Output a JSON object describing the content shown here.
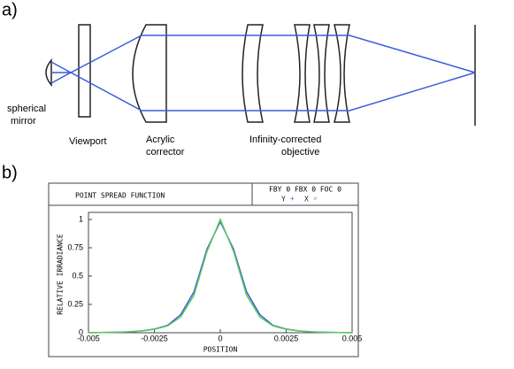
{
  "figure_labels": [
    "a)",
    "b)"
  ],
  "diagram": {
    "labels": {
      "mirror": [
        "spherical",
        "mirror"
      ],
      "viewport": "Viewport",
      "corrector": [
        "Acrylic",
        "corrector"
      ],
      "objective": [
        "Infinity-corrected",
        "objective"
      ]
    }
  },
  "chart_data": {
    "type": "line",
    "title": "POINT SPREAD FUNCTION",
    "header": "FBY 0 FBX 0 FOC 0",
    "x_label": "POSITION",
    "y_label": "RELATIVE IRRADIANCE",
    "x": [
      -0.005,
      -0.0045,
      -0.004,
      -0.0035,
      -0.003,
      -0.0025,
      -0.002,
      -0.0015,
      -0.001,
      -0.0005,
      0,
      0.0005,
      0.001,
      0.0015,
      0.002,
      0.0025,
      0.003,
      0.0035,
      0.004,
      0.0045,
      0.005
    ],
    "series": [
      {
        "name": "Y",
        "marker": "+",
        "color": "#3a5fd9",
        "values": [
          0.001,
          0.002,
          0.004,
          0.008,
          0.016,
          0.032,
          0.065,
          0.16,
          0.36,
          0.74,
          0.98,
          0.74,
          0.36,
          0.16,
          0.065,
          0.032,
          0.016,
          0.008,
          0.004,
          0.002,
          0.001
        ]
      },
      {
        "name": "X",
        "marker": "×",
        "color": "#5cc85c",
        "values": [
          0.001,
          0.002,
          0.004,
          0.008,
          0.015,
          0.03,
          0.06,
          0.14,
          0.33,
          0.72,
          1,
          0.72,
          0.33,
          0.14,
          0.06,
          0.03,
          0.015,
          0.008,
          0.004,
          0.002,
          0.001
        ]
      }
    ],
    "xlim": [
      -0.005,
      0.005
    ],
    "ylim": [
      0,
      1
    ],
    "xticks": [
      -0.005,
      -0.0025,
      0,
      0.0025,
      0.005
    ],
    "yticks": [
      0,
      0.25,
      0.5,
      0.75,
      1
    ]
  }
}
